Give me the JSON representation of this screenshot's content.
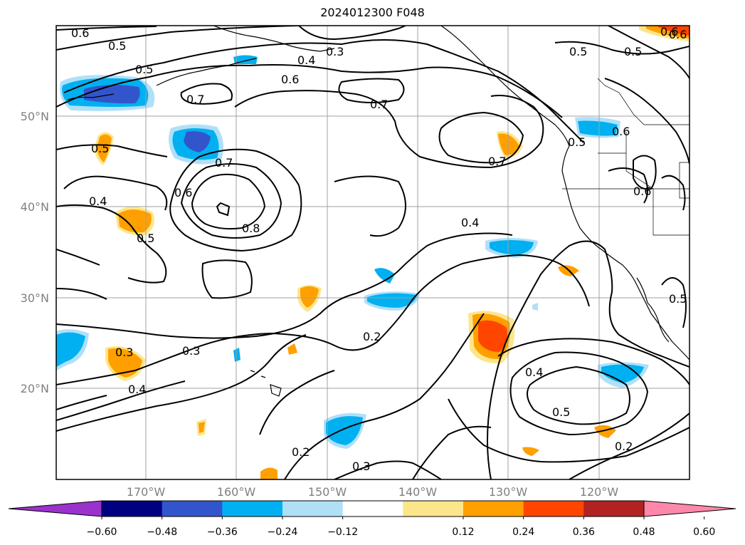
{
  "title": "2024012300 F048",
  "lat_labels": [
    "50°N",
    "40°N",
    "30°N",
    "20°N"
  ],
  "lon_labels": [
    "170°W",
    "160°W",
    "150°W",
    "140°W",
    "130°W",
    "120°W"
  ],
  "contour_labels": [
    "0.6",
    "0.5",
    "0.5",
    "0.4",
    "0.3",
    "0.6",
    "0.7",
    "0.7",
    "0.5",
    "0.5",
    "0.5",
    "0.7",
    "0.7",
    "0.6",
    "0.6",
    "0.4",
    "0.8",
    "0.5",
    "0.4",
    "0.6",
    "0.5",
    "0.3",
    "0.2",
    "0.4",
    "0.5",
    "0.3",
    "0.4",
    "0.2",
    "0.3",
    "0.2",
    "0.6",
    "0.6",
    "0.5"
  ],
  "colorbar": {
    "ticks": [
      "−0.60",
      "−0.48",
      "−0.36",
      "−0.24",
      "−0.12",
      "0.12",
      "0.24",
      "0.36",
      "0.48",
      "0.60"
    ],
    "colors": [
      "#9933cc",
      "#000080",
      "#3355cc",
      "#00b0f0",
      "#b0e0f8",
      "#ffffff",
      "#fde68a",
      "#ffa000",
      "#ff4500",
      "#b22222",
      "#ff88aa"
    ]
  }
}
